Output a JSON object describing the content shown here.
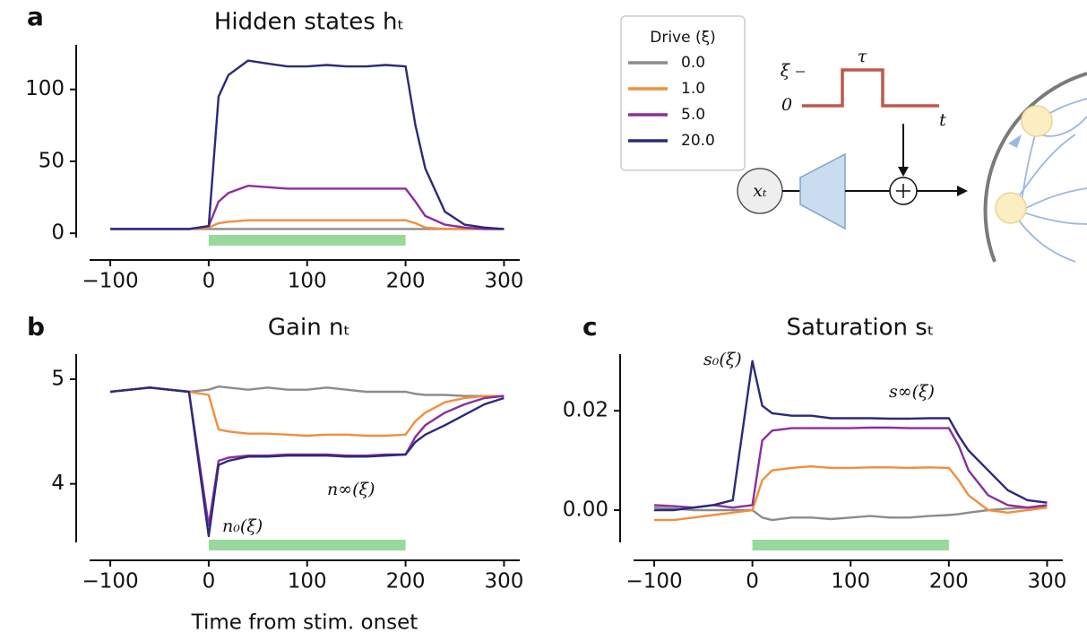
{
  "chart_data": [
    {
      "type": "line",
      "panel": "a",
      "title": "Hidden states hₜ",
      "x": [
        -100,
        -80,
        -60,
        -40,
        -20,
        0,
        10,
        20,
        40,
        60,
        80,
        100,
        120,
        140,
        160,
        180,
        200,
        210,
        220,
        240,
        260,
        280,
        300
      ],
      "series": [
        {
          "name": "0.0",
          "color": "#8c8c8c",
          "values": [
            3,
            3,
            3,
            3,
            3,
            3,
            3,
            3,
            3,
            3,
            3,
            3,
            3,
            3,
            3,
            3,
            3,
            3,
            3,
            3,
            3,
            3,
            3
          ]
        },
        {
          "name": "1.0",
          "color": "#f28e3c",
          "values": [
            3,
            3,
            3,
            3,
            3,
            4,
            7,
            8,
            9,
            9,
            9,
            9,
            9,
            9,
            9,
            9,
            9,
            7,
            4,
            3,
            3,
            3,
            3
          ]
        },
        {
          "name": "5.0",
          "color": "#8b2e9e",
          "values": [
            3,
            3,
            3,
            3,
            3,
            5,
            22,
            28,
            33,
            32,
            31,
            31,
            31,
            31,
            31,
            31,
            31,
            22,
            12,
            6,
            4,
            3,
            3
          ]
        },
        {
          "name": "20.0",
          "color": "#2b2a7b",
          "values": [
            3,
            3,
            3,
            3,
            3,
            5,
            95,
            110,
            120,
            118,
            116,
            116,
            117,
            116,
            116,
            117,
            116,
            75,
            45,
            15,
            6,
            4,
            3
          ]
        }
      ],
      "legend_title": "Drive (ξ)",
      "legend": "upper right",
      "stimulus": [
        0,
        200
      ],
      "stimulus_color": "#98d99b",
      "xlim": [
        -121,
        316
      ],
      "xticks": [
        {
          "value": -100,
          "label": "−100"
        },
        0,
        100,
        200,
        300
      ],
      "ylim": [
        -3,
        131
      ],
      "yticks": [
        0,
        50,
        100
      ]
    },
    {
      "type": "line",
      "panel": "b",
      "title": "Gain nₜ",
      "x_label": "Time from stim. onset",
      "x": [
        -100,
        -80,
        -60,
        -40,
        -20,
        0,
        10,
        20,
        40,
        60,
        80,
        100,
        120,
        140,
        160,
        180,
        200,
        210,
        220,
        240,
        260,
        280,
        300
      ],
      "series": [
        {
          "name": "0.0",
          "color": "#8c8c8c",
          "values": [
            4.88,
            4.9,
            4.92,
            4.9,
            4.88,
            4.9,
            4.93,
            4.92,
            4.9,
            4.92,
            4.9,
            4.9,
            4.92,
            4.9,
            4.88,
            4.88,
            4.88,
            4.86,
            4.85,
            4.85,
            4.84,
            4.84,
            4.84
          ]
        },
        {
          "name": "1.0",
          "color": "#f28e3c",
          "values": [
            4.88,
            4.9,
            4.92,
            4.9,
            4.88,
            4.85,
            4.52,
            4.5,
            4.48,
            4.48,
            4.47,
            4.46,
            4.47,
            4.47,
            4.46,
            4.46,
            4.47,
            4.6,
            4.68,
            4.78,
            4.82,
            4.84,
            4.84
          ]
        },
        {
          "name": "5.0",
          "color": "#8b2e9e",
          "values": [
            4.88,
            4.9,
            4.92,
            4.9,
            4.88,
            3.6,
            4.22,
            4.25,
            4.27,
            4.27,
            4.28,
            4.28,
            4.28,
            4.27,
            4.27,
            4.28,
            4.28,
            4.45,
            4.56,
            4.68,
            4.76,
            4.82,
            4.84
          ]
        },
        {
          "name": "20.0",
          "color": "#2b2a7b",
          "values": [
            4.88,
            4.9,
            4.92,
            4.9,
            4.88,
            3.5,
            4.18,
            4.22,
            4.26,
            4.26,
            4.27,
            4.27,
            4.27,
            4.26,
            4.26,
            4.27,
            4.28,
            4.4,
            4.47,
            4.56,
            4.66,
            4.76,
            4.82
          ]
        }
      ],
      "annotations": [
        "n₀(ξ)",
        "n∞(ξ)"
      ],
      "stimulus": [
        0,
        200
      ],
      "stimulus_color": "#98d99b",
      "xlim": [
        -121,
        316
      ],
      "xticks": [
        {
          "value": -100,
          "label": "−100"
        },
        0,
        100,
        200,
        300
      ],
      "ylim": [
        3.44,
        5.24
      ],
      "yticks": [
        4,
        5
      ]
    },
    {
      "type": "line",
      "panel": "c",
      "title": "Saturation sₜ",
      "x": [
        -100,
        -80,
        -60,
        -40,
        -20,
        0,
        10,
        20,
        40,
        60,
        80,
        100,
        120,
        140,
        160,
        180,
        200,
        210,
        220,
        240,
        260,
        280,
        300
      ],
      "series": [
        {
          "name": "0.0",
          "color": "#8c8c8c",
          "values": [
            0.0005,
            0.0003,
            0,
            0,
            0,
            0,
            -0.0015,
            -0.002,
            -0.0015,
            -0.0015,
            -0.0018,
            -0.0015,
            -0.0012,
            -0.0015,
            -0.0015,
            -0.0012,
            -0.001,
            -0.0008,
            -0.0005,
            0,
            0.0003,
            0.0005,
            0.0005
          ]
        },
        {
          "name": "1.0",
          "color": "#f28e3c",
          "values": [
            -0.002,
            -0.002,
            -0.0015,
            -0.001,
            -0.0005,
            0,
            0.006,
            0.008,
            0.0085,
            0.0088,
            0.0085,
            0.0085,
            0.0086,
            0.0086,
            0.0085,
            0.0086,
            0.0085,
            0.006,
            0.003,
            0,
            -0.0005,
            0,
            0.0005
          ]
        },
        {
          "name": "5.0",
          "color": "#8b2e9e",
          "values": [
            0.001,
            0.0008,
            0.0005,
            0.001,
            0.0005,
            0.001,
            0.014,
            0.016,
            0.0165,
            0.0165,
            0.0165,
            0.0165,
            0.0166,
            0.0166,
            0.0165,
            0.0165,
            0.0165,
            0.013,
            0.008,
            0.003,
            0.001,
            0.0005,
            0.001
          ]
        },
        {
          "name": "20.0",
          "color": "#2b2a7b",
          "values": [
            0,
            0,
            0.0005,
            0.001,
            0.002,
            0.03,
            0.021,
            0.0195,
            0.019,
            0.019,
            0.0185,
            0.0185,
            0.0185,
            0.0184,
            0.0184,
            0.0185,
            0.0185,
            0.015,
            0.012,
            0.008,
            0.004,
            0.002,
            0.0015
          ]
        }
      ],
      "annotations": [
        "s₀(ξ)",
        "s∞(ξ)"
      ],
      "stimulus": [
        0,
        200
      ],
      "stimulus_color": "#98d99b",
      "xlim": [
        -121,
        316
      ],
      "xticks": [
        {
          "value": -100,
          "label": "−100"
        },
        0,
        100,
        200,
        300
      ],
      "ylim": [
        -0.0065,
        0.0314
      ],
      "yticks": [
        {
          "value": 0,
          "label": "0.00"
        },
        {
          "value": 0.02,
          "label": "0.02"
        }
      ]
    }
  ],
  "diagram": {
    "drive_level": "ξ",
    "zero": "0",
    "duration": "τ",
    "time": "t",
    "input": "xₜ"
  }
}
